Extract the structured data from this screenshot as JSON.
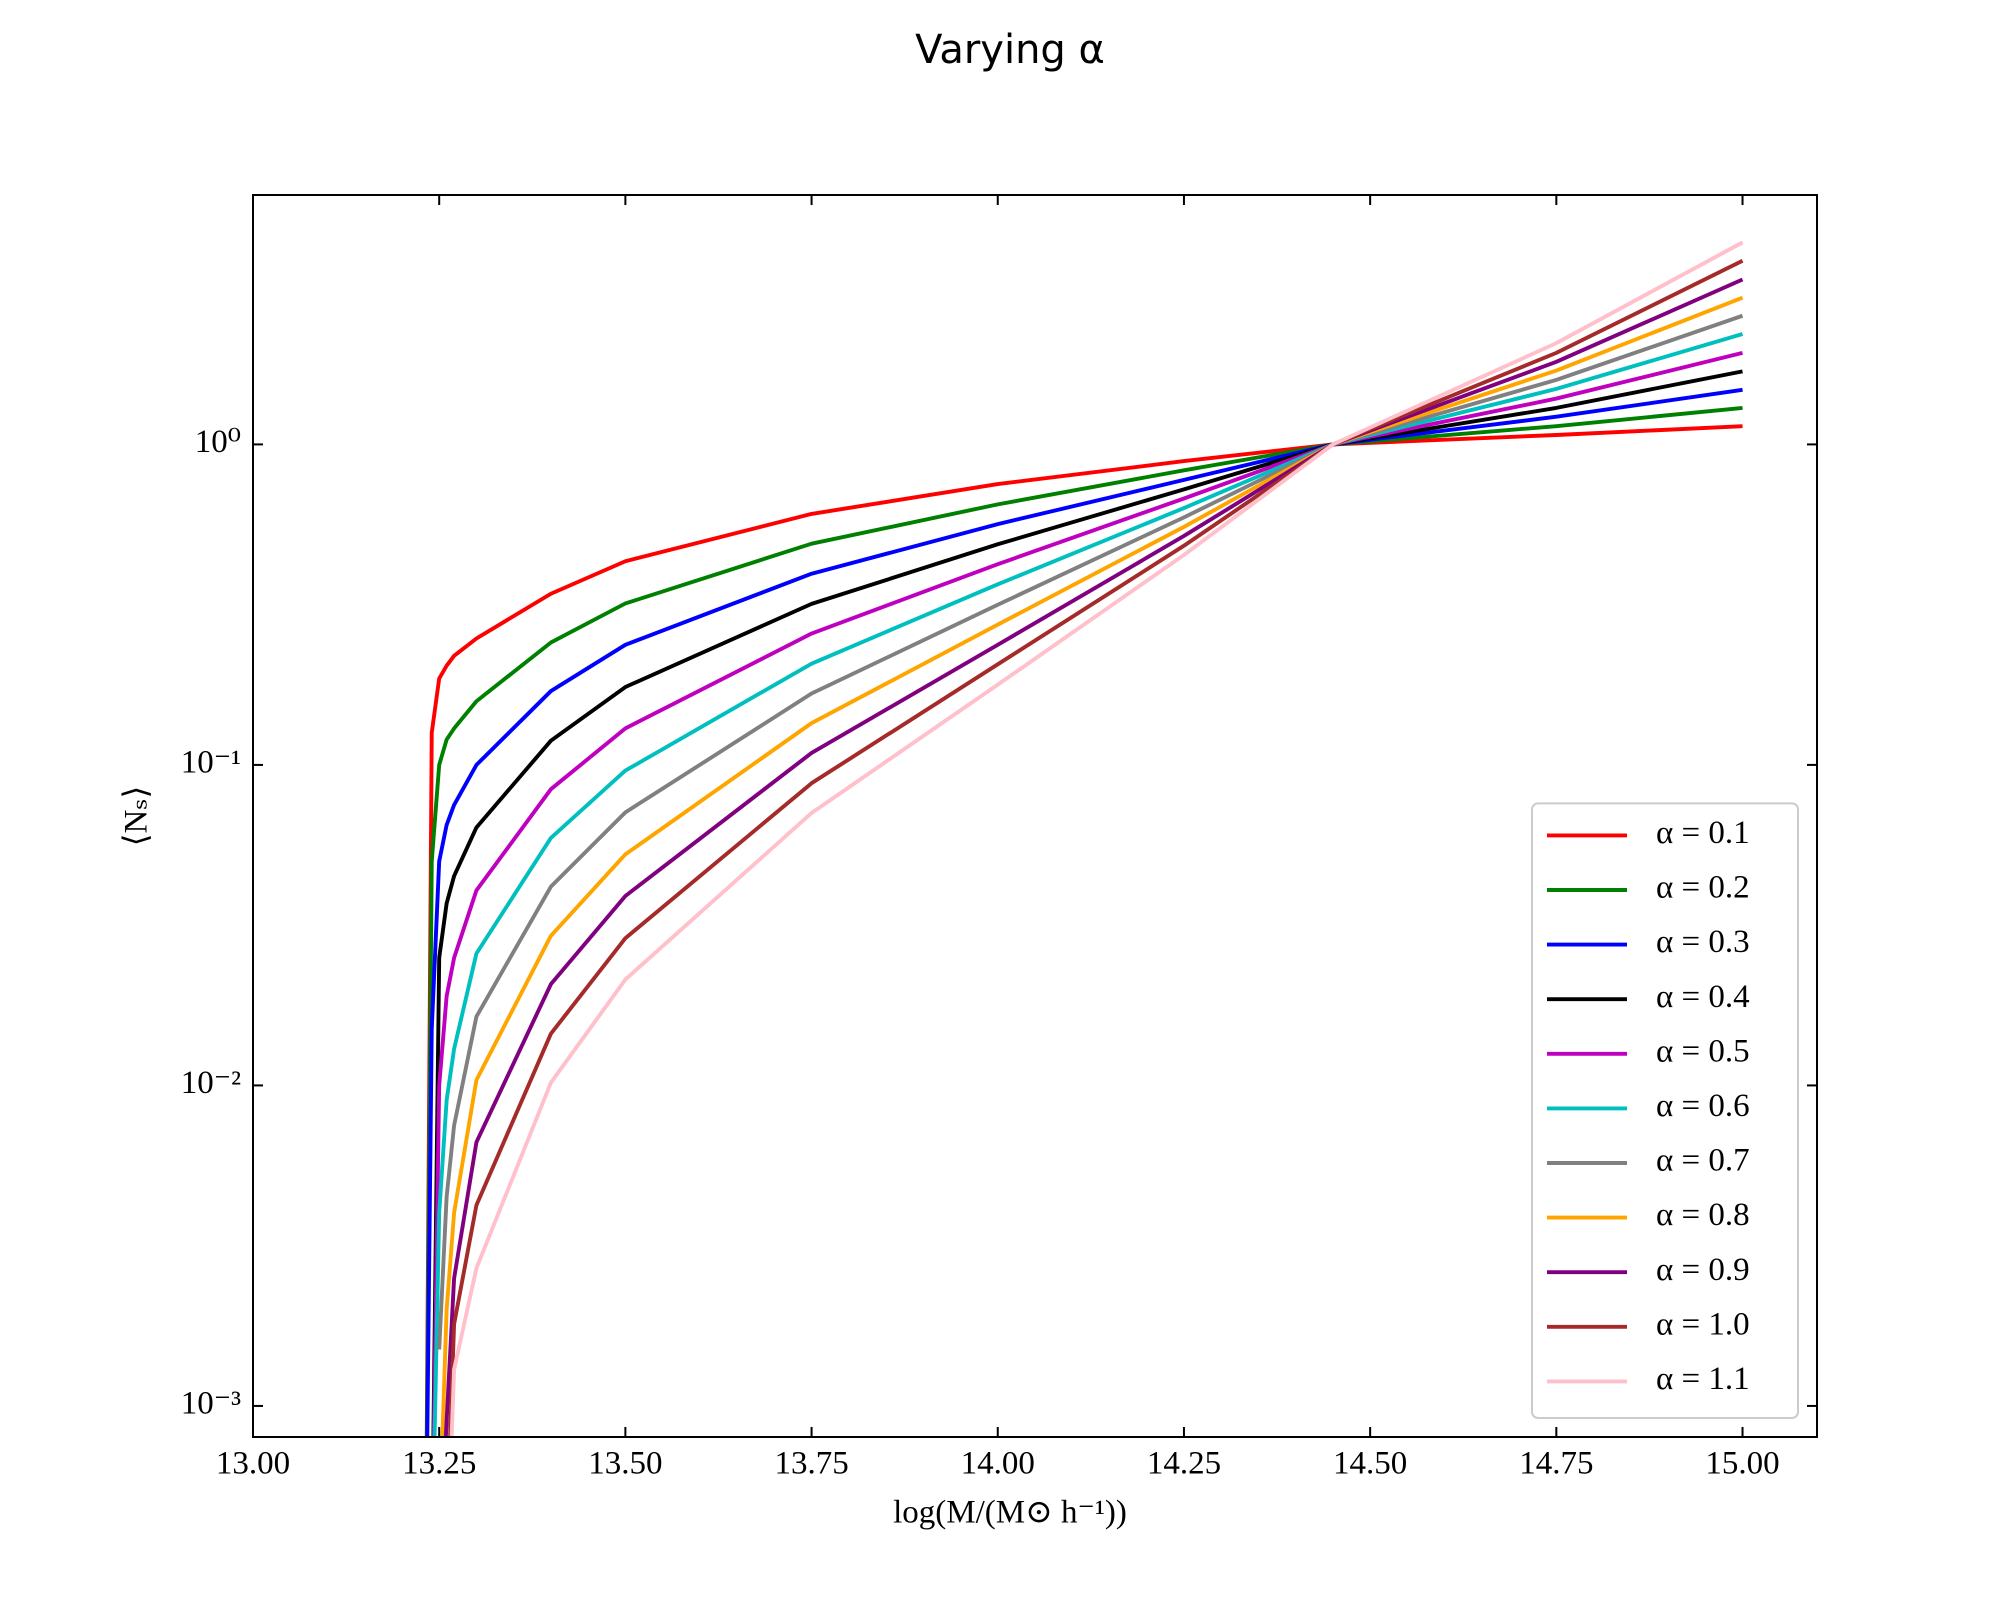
{
  "chart_data": {
    "type": "line",
    "title": "Varying α",
    "xlabel": "log(M/(M⊙ h⁻¹))",
    "ylabel": "⟨Nₛ⟩",
    "yscale": "log",
    "legend": "lower right",
    "xlim": [
      13.0,
      15.1
    ],
    "ylim": [
      0.0008,
      6
    ],
    "xticks": [
      {
        "value": 13.0,
        "label": "13.00"
      },
      {
        "value": 13.25,
        "label": "13.25"
      },
      {
        "value": 13.5,
        "label": "13.50"
      },
      {
        "value": 13.75,
        "label": "13.75"
      },
      {
        "value": 14.0,
        "label": "14.00"
      },
      {
        "value": 14.25,
        "label": "14.25"
      },
      {
        "value": 14.5,
        "label": "14.50"
      },
      {
        "value": 14.75,
        "label": "14.75"
      },
      {
        "value": 15.0,
        "label": "15.00"
      }
    ],
    "yticks": [
      {
        "value": 0.001,
        "label": "10⁻³"
      },
      {
        "value": 0.01,
        "label": "10⁻²"
      },
      {
        "value": 0.1,
        "label": "10⁻¹"
      },
      {
        "value": 1,
        "label": "10⁰"
      }
    ],
    "x": [
      13.232,
      13.24,
      13.25,
      13.26,
      13.27,
      13.3,
      13.4,
      13.5,
      13.75,
      14.0,
      14.25,
      14.45,
      14.75,
      15.0
    ],
    "series": [
      {
        "name": "α = 0.1",
        "color": "#ff0000",
        "values": [
          0.0003,
          0.126,
          0.186,
          0.204,
          0.219,
          0.248,
          0.342,
          0.432,
          0.607,
          0.752,
          0.887,
          1,
          1.07,
          1.14
        ]
      },
      {
        "name": "α = 0.2",
        "color": "#008000",
        "values": [
          0.0003,
          0.05,
          0.1,
          0.12,
          0.13,
          0.158,
          0.241,
          0.319,
          0.49,
          0.65,
          0.83,
          1,
          1.14,
          1.3
        ]
      },
      {
        "name": "α = 0.3",
        "color": "#0000ff",
        "values": [
          0.0003,
          0.015,
          0.05,
          0.065,
          0.075,
          0.1,
          0.17,
          0.237,
          0.395,
          0.564,
          0.775,
          1,
          1.22,
          1.48
        ]
      },
      {
        "name": "α = 0.4",
        "color": "#000000",
        "values": [
          null,
          0.0003,
          0.025,
          0.037,
          0.045,
          0.0638,
          0.119,
          0.175,
          0.318,
          0.488,
          0.724,
          1,
          1.3,
          1.69
        ]
      },
      {
        "name": "α = 0.5",
        "color": "#bf00bf",
        "values": [
          null,
          0.0003,
          0.01,
          0.019,
          0.025,
          0.0406,
          0.084,
          0.13,
          0.257,
          0.423,
          0.678,
          1,
          1.39,
          1.93
        ]
      },
      {
        "name": "α = 0.6",
        "color": "#00bfbf",
        "values": [
          null,
          0.0003,
          0.004,
          0.009,
          0.013,
          0.0258,
          0.0592,
          0.096,
          0.207,
          0.366,
          0.633,
          1,
          1.49,
          2.21
        ]
      },
      {
        "name": "α = 0.7",
        "color": "#808080",
        "values": [
          null,
          null,
          0.0015,
          0.0045,
          0.0075,
          0.0164,
          0.0417,
          0.0711,
          0.167,
          0.316,
          0.592,
          1,
          1.59,
          2.52
        ]
      },
      {
        "name": "α = 0.8",
        "color": "#ffa500",
        "values": [
          null,
          null,
          0.0004,
          0.002,
          0.004,
          0.0104,
          0.0293,
          0.0526,
          0.135,
          0.274,
          0.553,
          1,
          1.7,
          2.87
        ]
      },
      {
        "name": "α = 0.9",
        "color": "#800080",
        "values": [
          null,
          null,
          0.0003,
          0.0009,
          0.0025,
          0.00665,
          0.0207,
          0.039,
          0.109,
          0.237,
          0.518,
          1,
          1.81,
          3.27
        ]
      },
      {
        "name": "α = 1.0",
        "color": "#a52a2a",
        "values": [
          null,
          null,
          null,
          0.0004,
          0.0018,
          0.00423,
          0.0145,
          0.0288,
          0.0877,
          0.206,
          0.483,
          1,
          1.93,
          3.74
        ]
      },
      {
        "name": "α = 1.1",
        "color": "#ffc0cb",
        "values": [
          null,
          null,
          null,
          0.0003,
          0.0013,
          0.00269,
          0.0102,
          0.0214,
          0.0708,
          0.178,
          0.452,
          1,
          2.07,
          4.27
        ]
      }
    ]
  }
}
